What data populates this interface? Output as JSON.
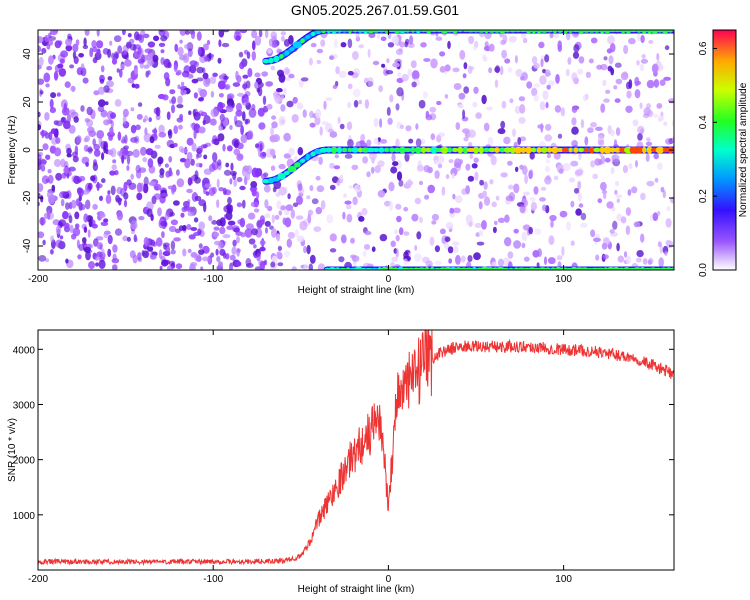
{
  "title": "GN05.2025.267.01.59.G01",
  "chart_data": [
    {
      "type": "heatmap",
      "xlabel": "Height of straight line (km)",
      "ylabel": "Frequency (Hz)",
      "xlim": [
        -200,
        163
      ],
      "ylim": [
        -50,
        50
      ],
      "x_ticks": [
        -200,
        -100,
        0,
        100
      ],
      "y_ticks": [
        40,
        20,
        0,
        -20,
        -40
      ],
      "colorbar": {
        "label": "Normalized spectral amplitude",
        "range": [
          0.0,
          0.65
        ],
        "ticks": [
          "0.0",
          "0.2",
          "0.4",
          "0.6"
        ]
      },
      "features": [
        {
          "name": "signal",
          "frequency_hz": 0,
          "x_start": -70,
          "ramp_from_hz": -13,
          "ramp_to_hz": 0,
          "ramp_x": [
            -70,
            -35
          ]
        },
        {
          "name": "upper alias",
          "frequency_hz": 50,
          "x_start": -70,
          "ramp_from_hz": 37,
          "ramp_to_hz": 50,
          "ramp_x": [
            -70,
            -35
          ]
        },
        {
          "name": "lower alias",
          "frequency_hz": -50,
          "x_start": -35
        }
      ]
    },
    {
      "type": "line",
      "xlabel": "Height of straight line (km)",
      "ylabel": "SNR (10 * v/v)",
      "xlim": [
        -200,
        163
      ],
      "ylim": [
        0,
        4350
      ],
      "x_ticks": [
        -200,
        -100,
        0,
        100
      ],
      "y_ticks": [
        1000,
        2000,
        3000,
        4000
      ],
      "color": "#ee3333",
      "envelope": {
        "x": [
          -200,
          -80,
          -60,
          -50,
          -45,
          -40,
          -30,
          -20,
          -10,
          -5,
          0,
          5,
          10,
          20,
          30,
          40,
          60,
          80,
          100,
          120,
          140,
          163
        ],
        "y": [
          150,
          150,
          160,
          250,
          500,
          900,
          1500,
          2100,
          2500,
          2800,
          1200,
          3200,
          3300,
          3700,
          3950,
          4050,
          4050,
          4050,
          4000,
          3950,
          3850,
          3550
        ]
      }
    }
  ]
}
